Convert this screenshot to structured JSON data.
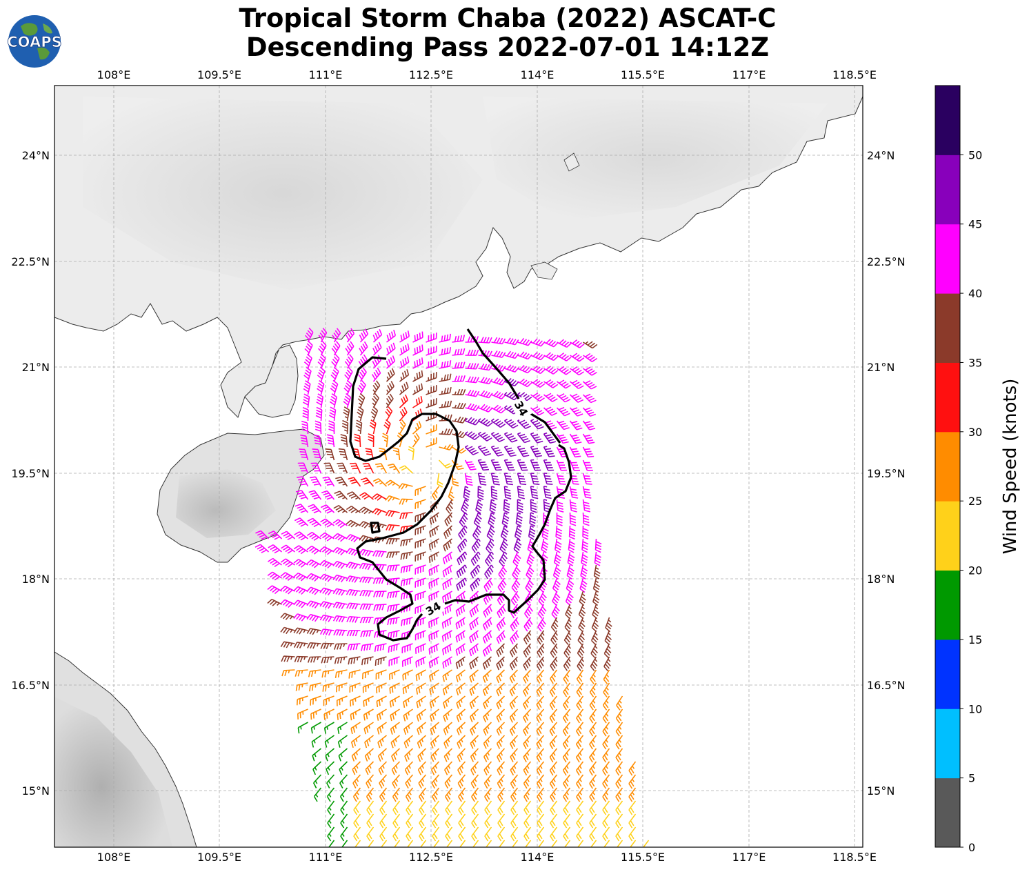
{
  "title": {
    "line1": "Tropical Storm Chaba (2022) ASCAT-C",
    "line2": "Descending Pass 2022-07-01 14:12Z"
  },
  "logo": {
    "text": "COAPS",
    "ocean_color": "#1f5fb0",
    "land_color": "#5a9a3a"
  },
  "map": {
    "lon_range": [
      107.5,
      118.6
    ],
    "lat_range": [
      14.2,
      25.0
    ],
    "lon_ticks": [
      "108°E",
      "109.5°E",
      "111°E",
      "112.5°E",
      "114°E",
      "115.5°E",
      "117°E",
      "118.5°E"
    ],
    "lat_ticks": [
      "24°N",
      "22.5°N",
      "21°N",
      "19.5°N",
      "18°N",
      "16.5°N",
      "15°N"
    ],
    "gridlines": true,
    "contour_label": "34",
    "storm_center": {
      "lon": 112.6,
      "lat": 19.6
    }
  },
  "colorbar": {
    "label": "Wind Speed (knots)",
    "ticks": [
      "0",
      "5",
      "10",
      "15",
      "20",
      "25",
      "30",
      "35",
      "40",
      "45",
      "50"
    ],
    "colors": [
      "#595959",
      "#00bfff",
      "#0033ff",
      "#009900",
      "#ffd11a",
      "#ff8c00",
      "#ff1010",
      "#8b3a2a",
      "#ff00ff",
      "#8800bb",
      "#2a0060"
    ]
  }
}
